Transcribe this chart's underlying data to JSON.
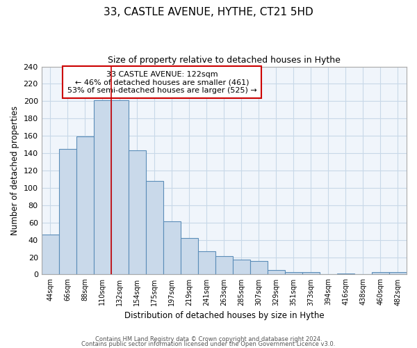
{
  "title1": "33, CASTLE AVENUE, HYTHE, CT21 5HD",
  "title2": "Size of property relative to detached houses in Hythe",
  "xlabel": "Distribution of detached houses by size in Hythe",
  "ylabel": "Number of detached properties",
  "bin_labels": [
    "44sqm",
    "66sqm",
    "88sqm",
    "110sqm",
    "132sqm",
    "154sqm",
    "175sqm",
    "197sqm",
    "219sqm",
    "241sqm",
    "263sqm",
    "285sqm",
    "307sqm",
    "329sqm",
    "351sqm",
    "373sqm",
    "394sqm",
    "416sqm",
    "438sqm",
    "460sqm",
    "482sqm"
  ],
  "bar_heights": [
    46,
    145,
    159,
    201,
    201,
    143,
    108,
    61,
    42,
    27,
    21,
    17,
    16,
    5,
    3,
    3,
    0,
    1,
    0,
    3,
    3
  ],
  "bar_color": "#c9d9ea",
  "bar_edge_color": "#5b8db8",
  "ylim": [
    0,
    240
  ],
  "yticks": [
    0,
    20,
    40,
    60,
    80,
    100,
    120,
    140,
    160,
    180,
    200,
    220,
    240
  ],
  "annotation_title": "33 CASTLE AVENUE: 122sqm",
  "annotation_line1": "← 46% of detached houses are smaller (461)",
  "annotation_line2": "53% of semi-detached houses are larger (525) →",
  "box_color": "#cc0000",
  "vline_color": "#cc0000",
  "vline_x_index": 3.5,
  "grid_color": "#c8d8e8",
  "footer1": "Contains HM Land Registry data © Crown copyright and database right 2024.",
  "footer2": "Contains public sector information licensed under the Open Government Licence v3.0."
}
